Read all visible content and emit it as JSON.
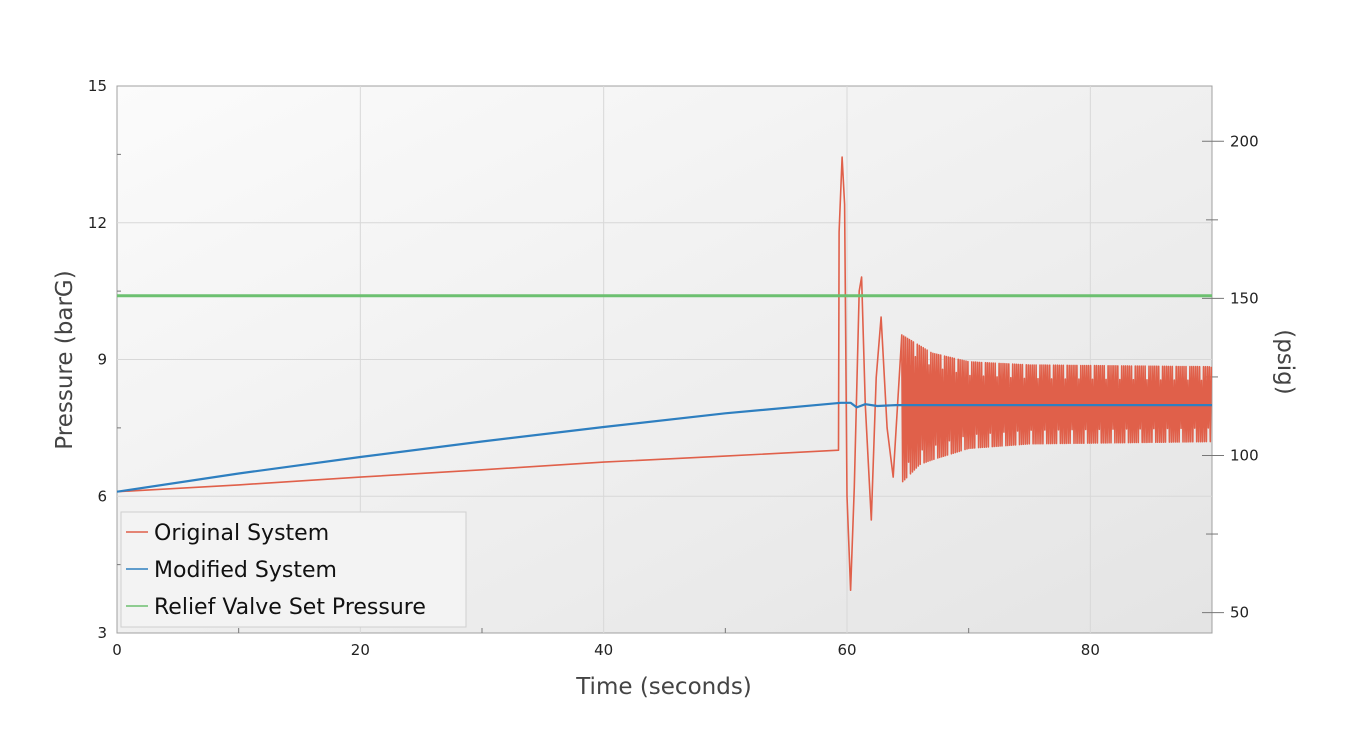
{
  "chart_data": {
    "type": "line",
    "title": "",
    "xlabel": "Time (seconds)",
    "ylabel": "Pressure (barG)",
    "y2label": "(psig)",
    "xlim": [
      0,
      90
    ],
    "ylim": [
      3,
      15
    ],
    "y2lim": [
      43.5,
      217.6
    ],
    "xticks": [
      0,
      20,
      40,
      60,
      80
    ],
    "yticks": [
      3,
      6,
      9,
      12,
      15
    ],
    "y2ticks": [
      50,
      100,
      150,
      200
    ],
    "grid": true,
    "legend_position": "bottom-left",
    "series": [
      {
        "name": "Original System",
        "color": "#e0604a",
        "points": [
          [
            0,
            6.1
          ],
          [
            10,
            6.25
          ],
          [
            20,
            6.42
          ],
          [
            30,
            6.58
          ],
          [
            40,
            6.75
          ],
          [
            50,
            6.88
          ],
          [
            59.3,
            7.01
          ],
          [
            59.35,
            11.8
          ],
          [
            59.6,
            13.44
          ],
          [
            59.8,
            12.4
          ],
          [
            60.0,
            6.0
          ],
          [
            60.3,
            3.94
          ],
          [
            60.6,
            6.2
          ],
          [
            61.0,
            10.5
          ],
          [
            61.2,
            10.81
          ],
          [
            61.5,
            8.0
          ],
          [
            62.0,
            5.48
          ],
          [
            62.4,
            8.6
          ],
          [
            62.8,
            9.93
          ],
          [
            63.3,
            7.5
          ],
          [
            63.8,
            6.42
          ],
          [
            64.2,
            8.2
          ],
          [
            64.5,
            9.54
          ]
        ],
        "oscillation": {
          "x_start": 64.5,
          "x_end": 90,
          "period": 0.16,
          "envelope": [
            [
              64.5,
              9.54,
              6.3
            ],
            [
              66,
              9.3,
              6.7
            ],
            [
              67,
              9.14,
              6.8
            ],
            [
              70,
              8.95,
              7.05
            ],
            [
              75,
              8.88,
              7.15
            ],
            [
              90,
              8.84,
              7.2
            ]
          ]
        }
      },
      {
        "name": "Modified System",
        "color": "#2e7fc0",
        "points": [
          [
            0,
            6.1
          ],
          [
            10,
            6.5
          ],
          [
            20,
            6.86
          ],
          [
            30,
            7.2
          ],
          [
            40,
            7.52
          ],
          [
            50,
            7.82
          ],
          [
            59.5,
            8.05
          ],
          [
            60.3,
            8.05
          ],
          [
            60.8,
            7.95
          ],
          [
            61.5,
            8.02
          ],
          [
            62.5,
            7.98
          ],
          [
            64,
            8.0
          ],
          [
            90,
            8.0
          ]
        ]
      },
      {
        "name": "Relief Valve Set Pressure",
        "color": "#6cc070",
        "points": [
          [
            0,
            10.4
          ],
          [
            90,
            10.4
          ]
        ]
      }
    ]
  }
}
